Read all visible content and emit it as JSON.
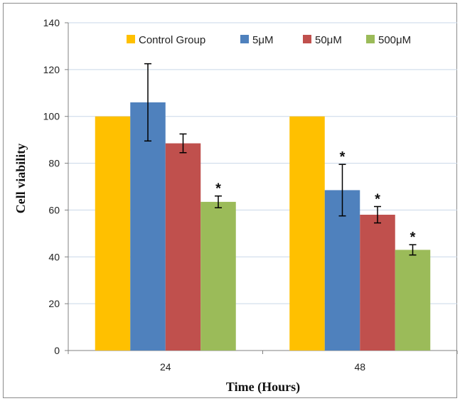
{
  "chart_data": {
    "type": "bar",
    "title": "",
    "xlabel": "Time (Hours)",
    "ylabel": "Cell viability",
    "ylim": [
      0,
      140
    ],
    "yticks": [
      0,
      20,
      40,
      60,
      80,
      100,
      120,
      140
    ],
    "grid": true,
    "legend_position": "top",
    "categories": [
      "24",
      "48"
    ],
    "series": [
      {
        "name": "Control Group",
        "color": "#FFC000",
        "values": [
          100,
          100
        ],
        "errors": [
          null,
          null
        ],
        "significant": [
          false,
          false
        ]
      },
      {
        "name": "5μM",
        "color": "#4F81BD",
        "values": [
          106,
          68.5
        ],
        "errors": [
          16.5,
          11
        ],
        "significant": [
          false,
          true
        ]
      },
      {
        "name": "50μM",
        "color": "#C0504D",
        "values": [
          88.5,
          58
        ],
        "errors": [
          4,
          3.5
        ],
        "significant": [
          false,
          true
        ]
      },
      {
        "name": "500μM",
        "color": "#9BBB59",
        "values": [
          63.5,
          43
        ],
        "errors": [
          2.5,
          2.2
        ],
        "significant": [
          true,
          true
        ]
      }
    ],
    "significance_marker": "*"
  }
}
